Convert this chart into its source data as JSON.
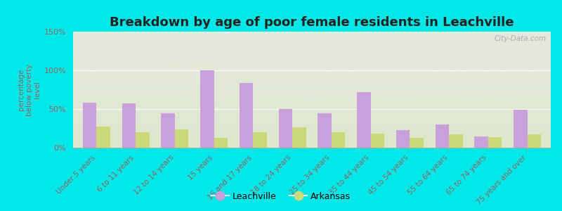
{
  "title": "Breakdown by age of poor female residents in Leachville",
  "ylabel": "percentage\nbelow poverty\nlevel",
  "categories": [
    "Under 5 years",
    "6 to 11 years",
    "12 to 14 years",
    "15 years",
    "16 and 17 years",
    "18 to 24 years",
    "25 to 34 years",
    "35 to 44 years",
    "45 to 54 years",
    "55 to 64 years",
    "65 to 74 years",
    "75 years and over"
  ],
  "leachville": [
    58,
    57,
    45,
    100,
    84,
    50,
    45,
    72,
    23,
    30,
    15,
    49
  ],
  "arkansas": [
    27,
    20,
    24,
    13,
    20,
    26,
    20,
    18,
    13,
    17,
    14,
    17
  ],
  "leachville_color": "#c9a0dc",
  "arkansas_color": "#ccd97a",
  "outer_bg": "#00e8e8",
  "ylim": [
    0,
    150
  ],
  "yticks": [
    0,
    50,
    100,
    150
  ],
  "ytick_labels": [
    "0%",
    "50%",
    "100%",
    "150%"
  ],
  "bar_width": 0.35,
  "title_fontsize": 13,
  "legend_labels": [
    "Leachville",
    "Arkansas"
  ],
  "watermark": "City-Data.com",
  "tick_color": "#886666",
  "grad_top": "#e8e8e0",
  "grad_bottom": "#dde8cc"
}
